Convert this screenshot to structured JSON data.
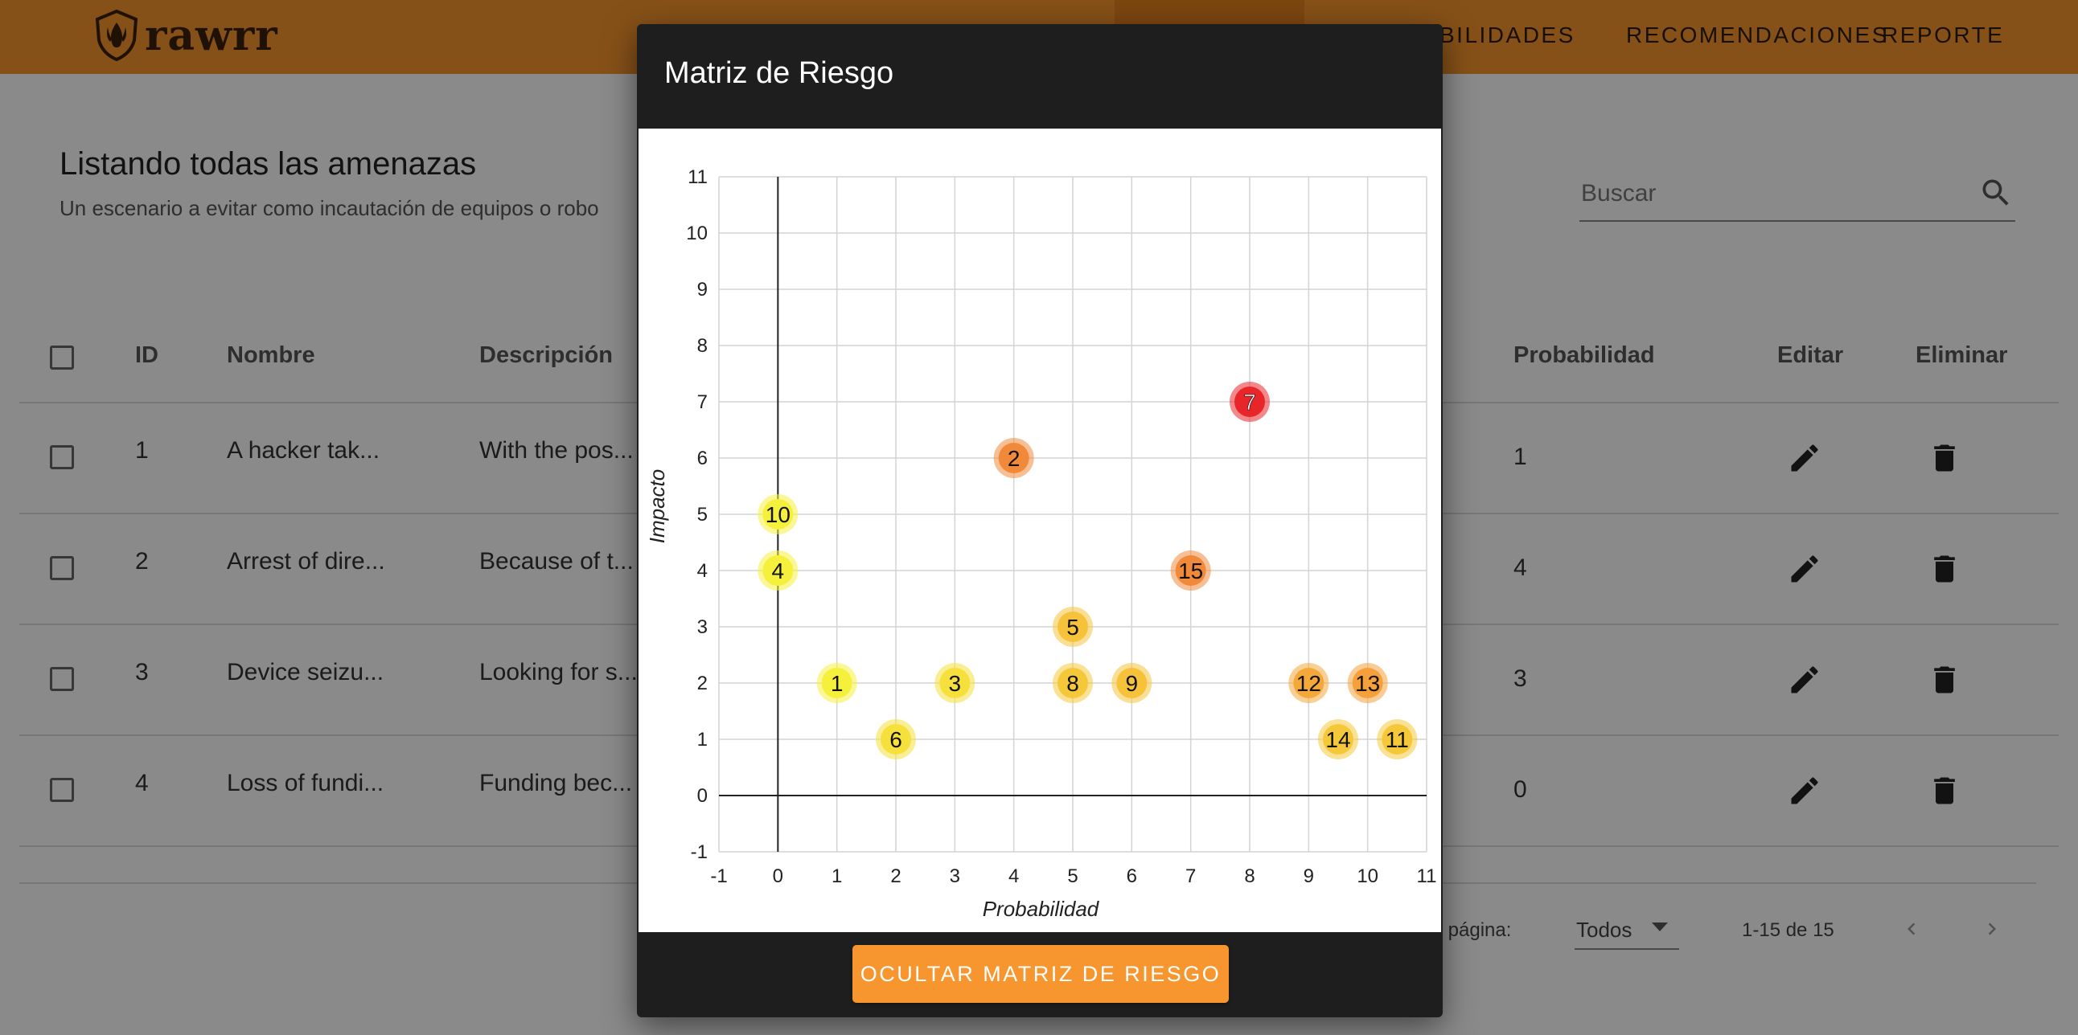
{
  "app": {
    "logo_text": "rawrr",
    "nav": [
      "BILIDADES",
      "RECOMENDACIONES",
      "REPORTE"
    ]
  },
  "page": {
    "title": "Listando todas las amenazas",
    "subtitle": "Un escenario a evitar como incautación de equipos o robo"
  },
  "search": {
    "placeholder": "Buscar"
  },
  "table": {
    "headers": {
      "id": "ID",
      "name": "Nombre",
      "description": "Descripción",
      "probability": "Probabilidad",
      "edit": "Editar",
      "delete": "Eliminar"
    },
    "rows": [
      {
        "id": "1",
        "name": "A hacker tak...",
        "description": "With the pos...",
        "probability": "1"
      },
      {
        "id": "2",
        "name": "Arrest of dire...",
        "description": "Because of t...",
        "probability": "4"
      },
      {
        "id": "3",
        "name": "Device seizu...",
        "description": "Looking for s...",
        "probability": "3"
      },
      {
        "id": "4",
        "name": "Loss of fundi...",
        "description": "Funding bec...",
        "probability": "0"
      }
    ]
  },
  "pagination": {
    "rows_per_page_label": "r página:",
    "rows_per_page_value": "Todos",
    "range": "1-15 de 15"
  },
  "dialog": {
    "title": "Matriz de Riesgo",
    "button": "OCULTAR MATRIZ DE RIESGO"
  },
  "colors": {
    "brand": "#f7962e",
    "dialog_bg": "#1e1e1e",
    "low_risk": "#f5f03c",
    "medium_risk": "#f5b83a",
    "high_risk": "#f08a3a",
    "critical_risk": "#e8262a"
  },
  "icons": {
    "search": "search-icon",
    "edit": "pencil-icon",
    "delete": "trash-icon",
    "dropdown": "caret-down-icon",
    "prev": "chevron-left-icon",
    "next": "chevron-right-icon",
    "logo": "shield-claw-icon"
  },
  "chart_data": {
    "type": "scatter",
    "xlabel": "Probabilidad",
    "ylabel": "Impacto",
    "xlim": [
      -1,
      11
    ],
    "ylim": [
      -1,
      11
    ],
    "grid": true,
    "x_ticks": [
      "-1",
      "0",
      "1",
      "2",
      "3",
      "4",
      "5",
      "6",
      "7",
      "8",
      "9",
      "10",
      "11"
    ],
    "y_ticks": [
      "-1",
      "0",
      "1",
      "2",
      "3",
      "4",
      "5",
      "6",
      "7",
      "8",
      "9",
      "10",
      "11"
    ],
    "points": [
      {
        "label": "1",
        "x": 1,
        "y": 2,
        "color": "#f5f03c"
      },
      {
        "label": "2",
        "x": 4,
        "y": 6,
        "color": "#f08a3a"
      },
      {
        "label": "3",
        "x": 3,
        "y": 2,
        "color": "#f5e03c"
      },
      {
        "label": "4",
        "x": 0,
        "y": 4,
        "color": "#f5f03c"
      },
      {
        "label": "5",
        "x": 5,
        "y": 3,
        "color": "#f5c23a"
      },
      {
        "label": "6",
        "x": 2,
        "y": 1,
        "color": "#f5e03c"
      },
      {
        "label": "7",
        "x": 8,
        "y": 7,
        "color": "#e8262a"
      },
      {
        "label": "8",
        "x": 5,
        "y": 2,
        "color": "#f5c83a"
      },
      {
        "label": "9",
        "x": 6,
        "y": 2,
        "color": "#f5c23a"
      },
      {
        "label": "10",
        "x": 0,
        "y": 5,
        "color": "#f5f03c"
      },
      {
        "label": "11",
        "x": 10.5,
        "y": 1,
        "color": "#f5c83a"
      },
      {
        "label": "12",
        "x": 9,
        "y": 2,
        "color": "#f5a83a"
      },
      {
        "label": "13",
        "x": 10,
        "y": 2,
        "color": "#f5a03a"
      },
      {
        "label": "14",
        "x": 9.5,
        "y": 1,
        "color": "#f5c83a"
      },
      {
        "label": "15",
        "x": 7,
        "y": 4,
        "color": "#f08a3a"
      }
    ]
  }
}
